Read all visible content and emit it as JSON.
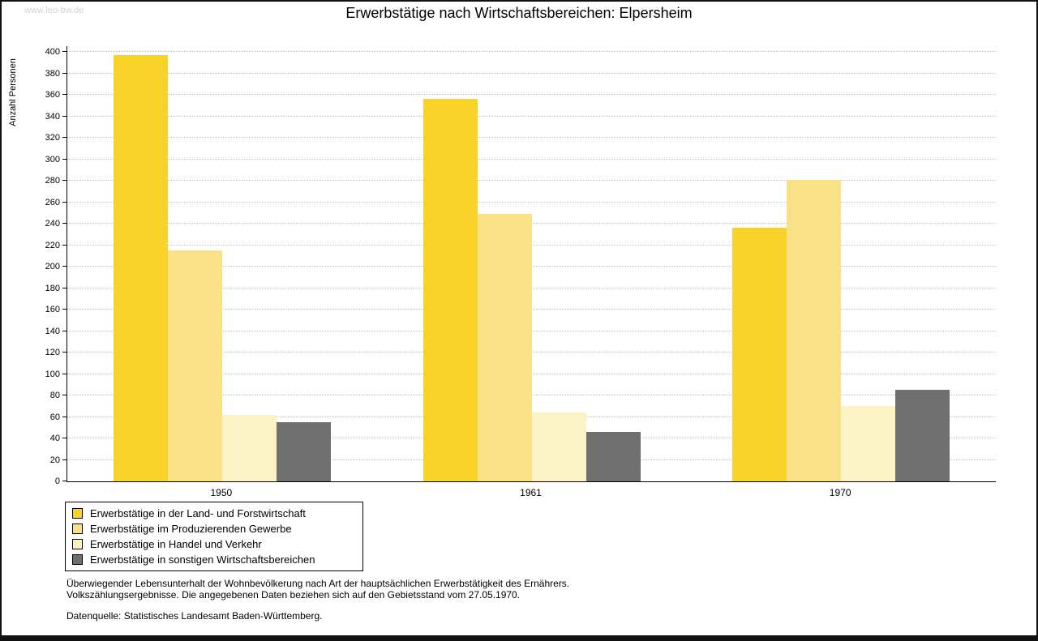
{
  "watermark": "www.leo-bw.de",
  "title": "Erwerbstätige nach Wirtschaftsbereichen: Elpersheim",
  "chart_data": {
    "type": "bar",
    "title": "Erwerbstätige nach Wirtschaftsbereichen: Elpersheim",
    "ylabel": "Anzahl Personen",
    "ylim": [
      0,
      400
    ],
    "ytick_step": 20,
    "grid": true,
    "legend_position": "bottom-left",
    "categories": [
      "1950",
      "1961",
      "1970"
    ],
    "series": [
      {
        "name": "Erwerbstätige in der Land- und Forstwirtschaft",
        "color": "#FAD32A",
        "values": [
          397,
          356,
          236
        ]
      },
      {
        "name": "Erwerbstätige im Produzierenden Gewerbe",
        "color": "#F8E186",
        "values": [
          215,
          249,
          281
        ]
      },
      {
        "name": "Erwerbstätige in Handel und Verkehr",
        "color": "#FCF3C5",
        "values": [
          62,
          64,
          70
        ]
      },
      {
        "name": "Erwerbstätige in sonstigen Wirtschaftsbereichen",
        "color": "#6F6F6F",
        "values": [
          55,
          46,
          85
        ]
      }
    ]
  },
  "footnotes": {
    "line1": "Überwiegender Lebensunterhalt der Wohnbevölkerung nach Art der hauptsächlichen Erwerbstätigkeit des Ernährers.",
    "line2": "Volkszählungsergebnisse. Die angegebenen Daten beziehen sich auf den Gebietsstand vom 27.05.1970.",
    "source": "Datenquelle: Statistisches Landesamt Baden-Württemberg."
  }
}
